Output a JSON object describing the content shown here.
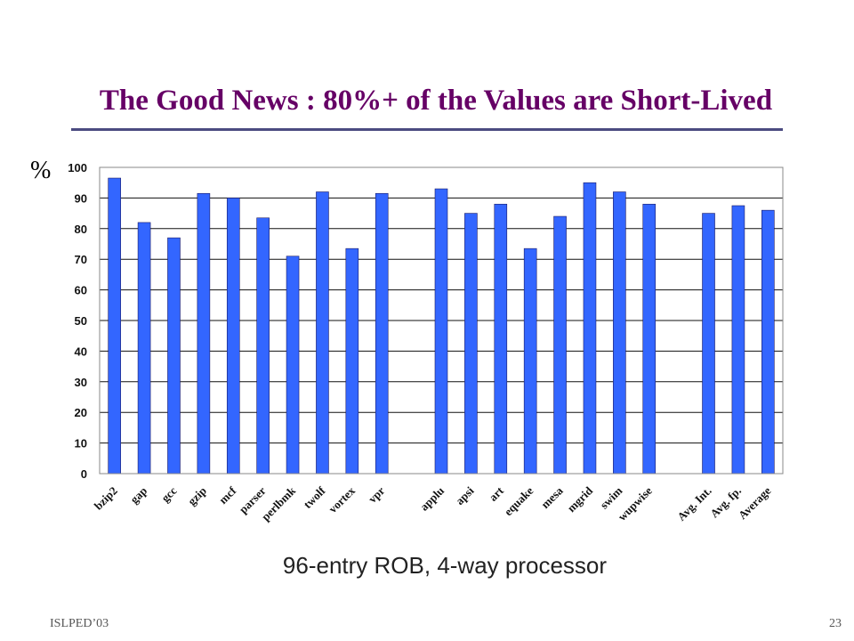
{
  "slide": {
    "title": "The Good News : 80%+ of the Values are Short-Lived",
    "caption": "96-entry ROB, 4-way processor",
    "footer_left": "ISLPED’03",
    "page_number": "23"
  },
  "colors": {
    "title": "#660066",
    "bar": "#3366ff",
    "rule": "#4b4b80"
  },
  "chart_data": {
    "type": "bar",
    "title": "",
    "xlabel": "",
    "ylabel": "%",
    "ylim": [
      0,
      100
    ],
    "yticks": [
      0,
      10,
      20,
      30,
      40,
      50,
      60,
      70,
      80,
      90,
      100
    ],
    "grid": true,
    "categories": [
      "bzip2",
      "gap",
      "gcc",
      "gzip",
      "mcf",
      "parser",
      "perlbmk",
      "twolf",
      "vortex",
      "vpr",
      "",
      "applu",
      "apsi",
      "art",
      "equake",
      "mesa",
      "mgrid",
      "swim",
      "wupwise",
      "",
      "Avg. Int.",
      "Avg. fp.",
      "Average"
    ],
    "values": [
      96.5,
      82,
      77,
      91.5,
      90,
      83.5,
      71,
      92,
      73.5,
      91.5,
      null,
      93,
      85,
      88,
      73.5,
      84,
      95,
      92,
      88,
      null,
      85,
      87.5,
      86
    ]
  }
}
